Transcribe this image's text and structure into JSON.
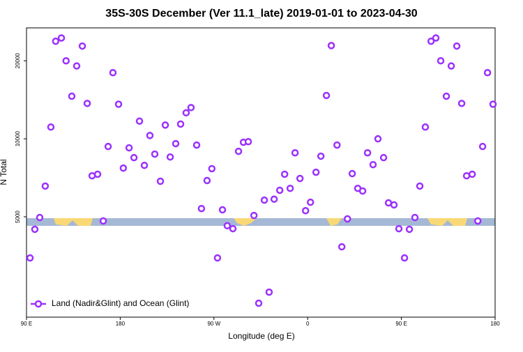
{
  "chart_data": {
    "type": "scatter",
    "title": "35S-30S December (Ver 11.1_late)   2019-01-01 to 2023-04-30",
    "x_label": "Longitude (deg E)",
    "y_label": "N Total",
    "ylog": true,
    "legend": "lower left",
    "xlim": [
      90,
      540
    ],
    "ylim": [
      2050,
      26800
    ],
    "xticks": [
      {
        "value": 90,
        "label": "90 E"
      },
      180,
      {
        "value": 270,
        "label": "90 W"
      },
      {
        "value": 360,
        "label": "0"
      },
      {
        "value": 450,
        "label": "90 E"
      },
      {
        "value": 540,
        "label": "180"
      }
    ],
    "yticks": [
      5000,
      10000,
      20000
    ],
    "series": [
      {
        "name": "Land (Nadir&Glint) and Ocean (Glint)",
        "color": "#9b30ff",
        "x": [
          93.4,
          98,
          102.7,
          108,
          113.4,
          118,
          123.5,
          128,
          133.5,
          138.2,
          143.6,
          148.3,
          153,
          158.3,
          163.7,
          168.4,
          173,
          178.4,
          183,
          188.5,
          193.2,
          198.5,
          203.2,
          208.5,
          213.2,
          218.6,
          223.3,
          228,
          233.3,
          238,
          243.3,
          248,
          253.4,
          258,
          263.4,
          268,
          273.4,
          278.2,
          282.8,
          288.2,
          293.6,
          298.3,
          303,
          308.4,
          313,
          318.4,
          323,
          327.8,
          333.2,
          337.9,
          343.2,
          347.9,
          352.6,
          358,
          362.7,
          368,
          372.7,
          378,
          382.7,
          388.2,
          392.8,
          398.2,
          402.8,
          408.1,
          412.8,
          417.5,
          422.8,
          427.5,
          432.9,
          437.6,
          442.9,
          447.6,
          453,
          457.7,
          463,
          467.7,
          473,
          478.5,
          483.1,
          487.8,
          493.2,
          497.9,
          503.2,
          507.9,
          512.6,
          518,
          523.4,
          528,
          532.7,
          538
        ],
        "values": [
          3470,
          4475,
          4970,
          6570,
          11100,
          23800,
          24500,
          20000,
          14600,
          19100,
          22800,
          13700,
          7200,
          7300,
          4820,
          9340,
          18000,
          13600,
          7710,
          9230,
          8460,
          11700,
          7900,
          10300,
          8730,
          6860,
          11300,
          8510,
          9580,
          11400,
          12600,
          13200,
          9460,
          5380,
          6900,
          7670,
          3470,
          5320,
          4620,
          4500,
          8950,
          9700,
          9750,
          5060,
          2320,
          5800,
          2560,
          5850,
          6330,
          7300,
          6440,
          8830,
          7030,
          5280,
          5690,
          7430,
          8570,
          14700,
          22900,
          9460,
          3830,
          4910,
          7340,
          6440,
          6290,
          8830,
          7950,
          10000,
          8460,
          5660,
          5560,
          4500,
          3470,
          4475,
          4970,
          6570,
          11100,
          23800,
          24500,
          20000,
          14600,
          19100,
          22800,
          13700,
          7200,
          7300,
          4820,
          9340,
          18000,
          13600
        ]
      }
    ]
  }
}
